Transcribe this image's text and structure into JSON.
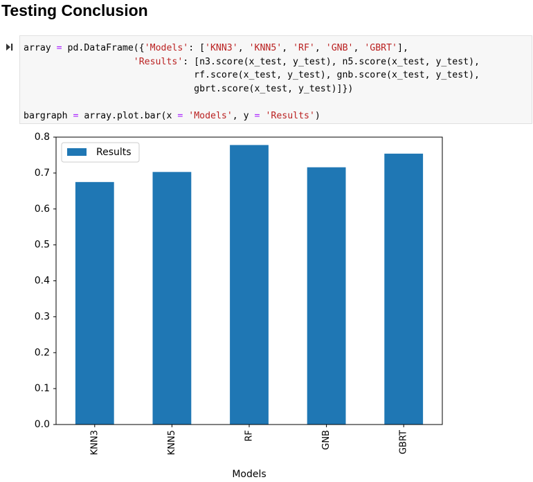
{
  "page": {
    "title": "Testing Conclusion"
  },
  "cell": {
    "run_icon": "run-cursor-icon",
    "lines": [
      [
        {
          "t": "array "
        },
        {
          "t": "=",
          "c": "kw"
        },
        {
          "t": " pd.DataFrame({"
        },
        {
          "t": "'Models'",
          "c": "str"
        },
        {
          "t": ": ["
        },
        {
          "t": "'KNN3'",
          "c": "str"
        },
        {
          "t": ", "
        },
        {
          "t": "'KNN5'",
          "c": "str"
        },
        {
          "t": ", "
        },
        {
          "t": "'RF'",
          "c": "str"
        },
        {
          "t": ", "
        },
        {
          "t": "'GNB'",
          "c": "str"
        },
        {
          "t": ", "
        },
        {
          "t": "'GBRT'",
          "c": "str"
        },
        {
          "t": "],"
        }
      ],
      [
        {
          "t": "                    "
        },
        {
          "t": "'Results'",
          "c": "str"
        },
        {
          "t": ": [n3.score(x_test, y_test), n5.score(x_test, y_test),"
        }
      ],
      [
        {
          "t": "                               rf.score(x_test, y_test), gnb.score(x_test, y_test),"
        }
      ],
      [
        {
          "t": "                               gbrt.score(x_test, y_test)]})"
        }
      ],
      [
        {
          "t": ""
        }
      ],
      [
        {
          "t": "bargraph "
        },
        {
          "t": "=",
          "c": "kw"
        },
        {
          "t": " array.plot.bar(x "
        },
        {
          "t": "=",
          "c": "kw"
        },
        {
          "t": " "
        },
        {
          "t": "'Models'",
          "c": "str"
        },
        {
          "t": ", y "
        },
        {
          "t": "=",
          "c": "kw"
        },
        {
          "t": " "
        },
        {
          "t": "'Results'",
          "c": "str"
        },
        {
          "t": ")"
        }
      ]
    ]
  },
  "chart_data": {
    "type": "bar",
    "categories": [
      "KNN3",
      "KNN5",
      "RF",
      "GNB",
      "GBRT"
    ],
    "series": [
      {
        "name": "Results",
        "values": [
          0.675,
          0.703,
          0.778,
          0.716,
          0.754
        ]
      }
    ],
    "xlabel": "Models",
    "ylabel": "",
    "ylim": [
      0,
      0.8
    ],
    "yticks": [
      "0.0",
      "0.1",
      "0.2",
      "0.3",
      "0.4",
      "0.5",
      "0.6",
      "0.7",
      "0.8"
    ],
    "grid": false,
    "legend": "upper-left",
    "colors": {
      "bar": "#1f77b4"
    }
  }
}
